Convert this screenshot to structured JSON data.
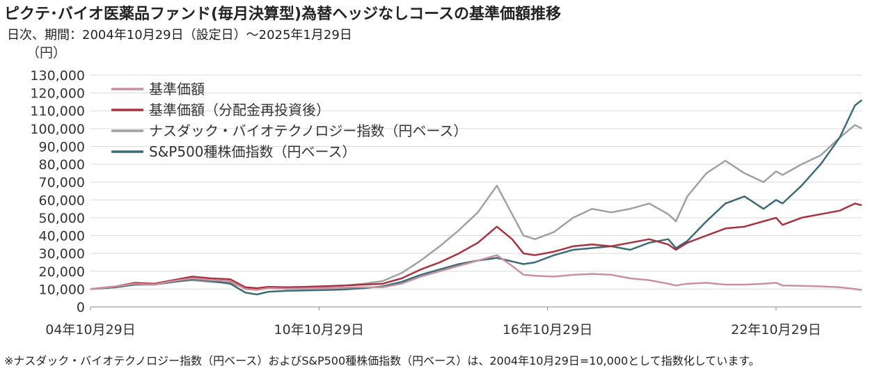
{
  "header": {
    "title": "ピクテ･バイオ医薬品ファンド(毎月決算型)為替ヘッジなしコースの基準価額推移",
    "subtitle": "日次、期間：2004年10月29日（設定日）～2025年1月29日"
  },
  "footnote": "※ナスダック・バイオテクノロジー指数（円ベース）およびS&P500種株価指数（円ベース）は、2004年10月29日=10,000として指数化しています。",
  "chart_data": {
    "type": "line",
    "ylabel": "（円）",
    "ylim": [
      0,
      130000
    ],
    "yticks": [
      0,
      10000,
      20000,
      30000,
      40000,
      50000,
      60000,
      70000,
      80000,
      90000,
      100000,
      110000,
      120000,
      130000
    ],
    "ytick_labels": [
      "0",
      "10,000",
      "20,000",
      "30,000",
      "40,000",
      "50,000",
      "60,000",
      "70,000",
      "80,000",
      "90,000",
      "100,000",
      "110,000",
      "120,000",
      "130,000"
    ],
    "xlim": [
      2004.83,
      2025.08
    ],
    "xticks": [
      2004.83,
      2010.83,
      2016.83,
      2022.83
    ],
    "xtick_labels": [
      "04年10月29日",
      "10年10月29日",
      "16年10月29日",
      "22年10月29日"
    ],
    "legend_position": "top-left",
    "grid": "horizontal",
    "x": [
      2004.83,
      2005.5,
      2006.0,
      2006.5,
      2007.0,
      2007.5,
      2008.0,
      2008.5,
      2008.9,
      2009.2,
      2009.5,
      2010.0,
      2010.5,
      2011.0,
      2011.5,
      2012.0,
      2012.5,
      2013.0,
      2013.5,
      2014.0,
      2014.5,
      2015.0,
      2015.5,
      2015.9,
      2016.2,
      2016.5,
      2017.0,
      2017.5,
      2018.0,
      2018.5,
      2019.0,
      2019.5,
      2020.0,
      2020.2,
      2020.5,
      2021.0,
      2021.5,
      2022.0,
      2022.5,
      2022.83,
      2023.0,
      2023.5,
      2024.0,
      2024.5,
      2024.9,
      2025.08
    ],
    "series": [
      {
        "name": "基準価額",
        "color": "#c9919f",
        "values": [
          10000,
          11500,
          13000,
          12500,
          14500,
          16000,
          15000,
          14500,
          10000,
          9500,
          10500,
          10200,
          10400,
          10600,
          10800,
          11000,
          11000,
          13000,
          17000,
          20000,
          23000,
          26000,
          29000,
          23000,
          18000,
          17500,
          17000,
          18000,
          18500,
          18000,
          16000,
          15000,
          13000,
          12000,
          13000,
          13500,
          12500,
          12500,
          13000,
          13500,
          12000,
          11800,
          11500,
          11000,
          10000,
          9500
        ]
      },
      {
        "name": "基準価額（分配金再投資後）",
        "color": "#a8323e",
        "values": [
          10000,
          11500,
          13500,
          13000,
          15000,
          17000,
          16000,
          15500,
          11000,
          10500,
          11200,
          11000,
          11300,
          11600,
          12000,
          12500,
          13000,
          16000,
          21000,
          25000,
          30000,
          36000,
          45000,
          38000,
          30000,
          29000,
          31000,
          34000,
          35000,
          34000,
          36000,
          38000,
          35000,
          32000,
          36000,
          40000,
          44000,
          45000,
          48000,
          50000,
          46000,
          50000,
          52000,
          54000,
          58000,
          57000
        ]
      },
      {
        "name": "ナスダック・バイオテクノロジー指数（円ベース）",
        "color": "#a0a0a0",
        "values": [
          10000,
          11000,
          13000,
          12500,
          14000,
          15000,
          14000,
          13500,
          10500,
          10000,
          10800,
          10800,
          11200,
          11500,
          12000,
          13000,
          14500,
          19000,
          26000,
          34000,
          43000,
          53000,
          68000,
          52000,
          40000,
          38000,
          42000,
          50000,
          55000,
          53000,
          55000,
          58000,
          52000,
          48000,
          62000,
          75000,
          82000,
          75000,
          70000,
          76000,
          74000,
          80000,
          85000,
          95000,
          102000,
          100000
        ]
      },
      {
        "name": "S&P500種株価指数（円ベース）",
        "color": "#3a6b76",
        "values": [
          10000,
          11000,
          12500,
          12500,
          14000,
          15500,
          14500,
          13000,
          8000,
          7000,
          8500,
          9000,
          9300,
          9500,
          9800,
          10500,
          11500,
          14000,
          18000,
          21000,
          24000,
          26000,
          27500,
          25500,
          24000,
          25000,
          29000,
          32000,
          33000,
          34000,
          32000,
          36000,
          38000,
          33000,
          37000,
          48000,
          58000,
          62000,
          55000,
          60000,
          58000,
          68000,
          80000,
          95000,
          113000,
          116000
        ]
      }
    ]
  }
}
